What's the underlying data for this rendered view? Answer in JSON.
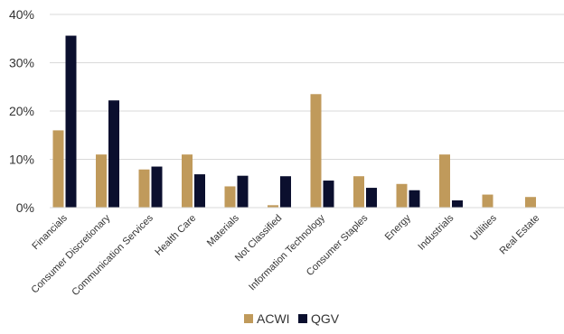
{
  "chart_data": {
    "type": "bar",
    "categories": [
      "Financials",
      "Consumer Discretionary",
      "Communication Services",
      "Health Care",
      "Materials",
      "Not Classified",
      "Information Technology",
      "Consumer Staples",
      "Energy",
      "Industrials",
      "Utilities",
      "Real Estate"
    ],
    "series": [
      {
        "name": "ACWI",
        "color": "#c09a5b",
        "values": [
          16.0,
          11.0,
          7.9,
          11.0,
          4.4,
          0.5,
          23.5,
          6.5,
          4.9,
          11.0,
          2.7,
          2.2
        ]
      },
      {
        "name": "QGV",
        "color": "#0b0f2e",
        "values": [
          35.6,
          22.2,
          8.5,
          6.9,
          6.6,
          6.5,
          5.6,
          4.1,
          3.6,
          1.5,
          0,
          0
        ]
      }
    ],
    "title": "",
    "xlabel": "",
    "ylabel": "",
    "ylim": [
      0,
      40
    ],
    "yticks": [
      "0%",
      "10%",
      "20%",
      "30%",
      "40%"
    ],
    "grid": true,
    "legend_position": "bottom-center"
  }
}
